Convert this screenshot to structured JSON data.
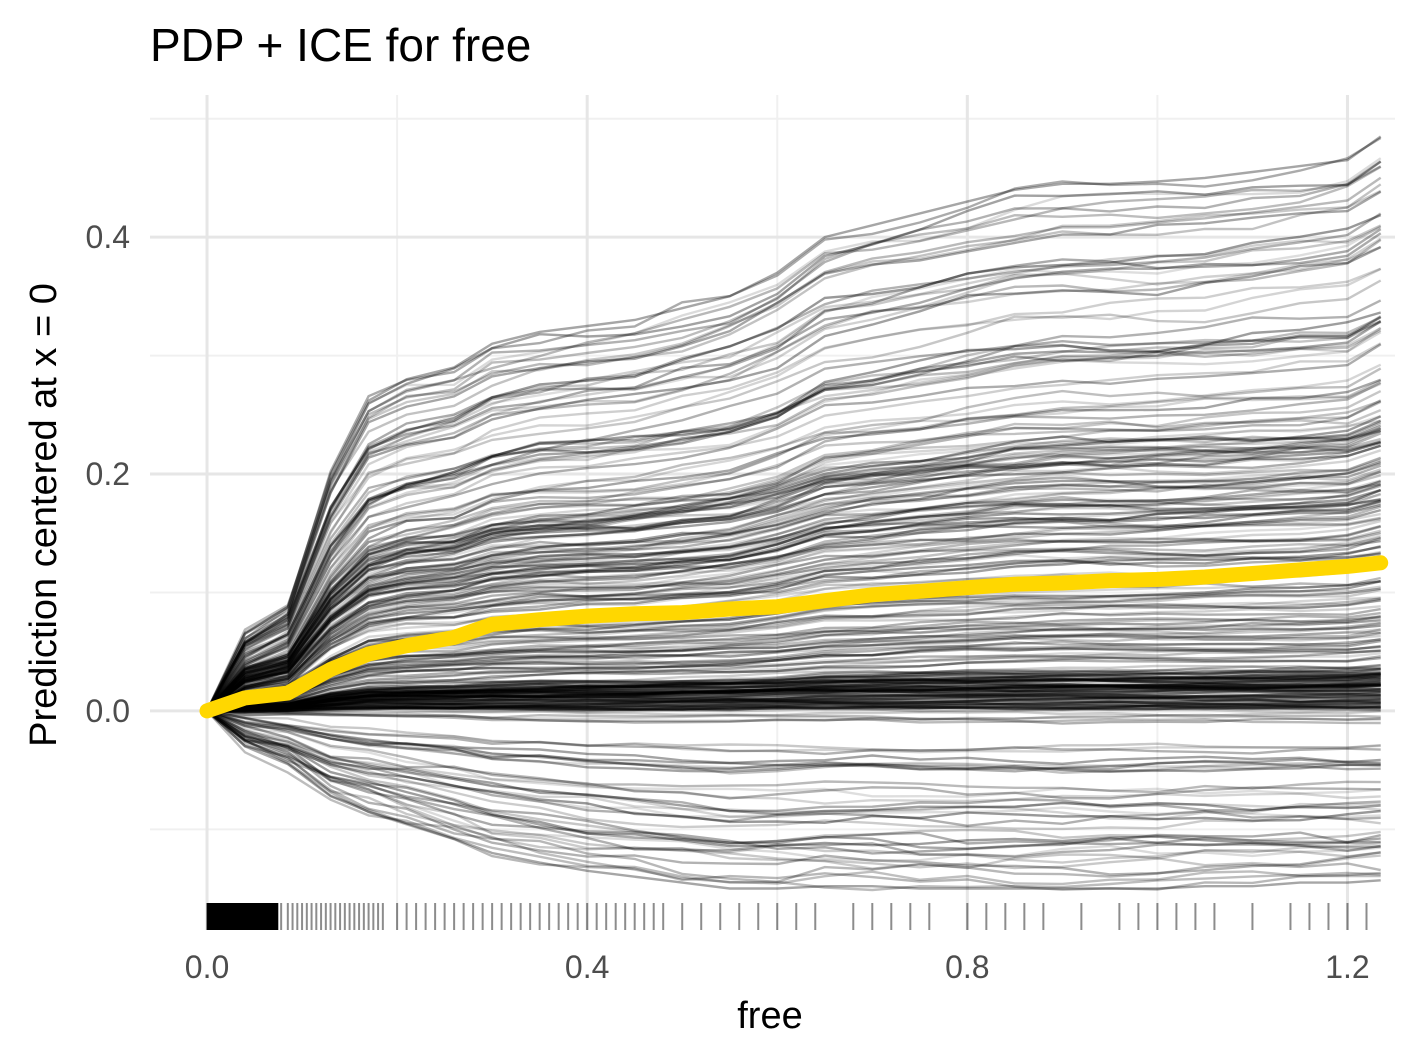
{
  "chart_data": {
    "type": "line",
    "title": "PDP + ICE for free",
    "xlabel": "free",
    "ylabel": "Prediction centered at x = 0",
    "xlim": [
      -0.06,
      1.25
    ],
    "ylim": [
      -0.185,
      0.52
    ],
    "x_ticks": [
      0.0,
      0.4,
      0.8,
      1.2
    ],
    "x_tick_labels": [
      "0.0",
      "0.4",
      "0.8",
      "1.2"
    ],
    "y_ticks": [
      0.0,
      0.2,
      0.4
    ],
    "y_tick_labels": [
      "0.0",
      "0.2",
      "0.4"
    ],
    "grid": true,
    "legend": "none",
    "pdp_color": "#FFD700",
    "ice_color": "#000000",
    "series": [
      {
        "kind": "pdp",
        "x": [
          0.0,
          0.04,
          0.085,
          0.13,
          0.17,
          0.21,
          0.26,
          0.3,
          0.35,
          0.4,
          0.45,
          0.5,
          0.55,
          0.6,
          0.65,
          0.7,
          0.75,
          0.8,
          0.85,
          0.9,
          0.95,
          1.0,
          1.05,
          1.1,
          1.15,
          1.2,
          1.235
        ],
        "y": [
          0.0,
          0.011,
          0.015,
          0.035,
          0.048,
          0.055,
          0.062,
          0.073,
          0.077,
          0.08,
          0.082,
          0.083,
          0.086,
          0.088,
          0.093,
          0.098,
          0.101,
          0.104,
          0.107,
          0.108,
          0.11,
          0.111,
          0.113,
          0.116,
          0.119,
          0.122,
          0.125
        ]
      }
    ],
    "ice_envelope": {
      "x": [
        0.0,
        0.04,
        0.085,
        0.13,
        0.17,
        0.21,
        0.26,
        0.3,
        0.35,
        0.4,
        0.45,
        0.5,
        0.55,
        0.6,
        0.65,
        0.7,
        0.75,
        0.8,
        0.85,
        0.9,
        0.95,
        1.0,
        1.05,
        1.1,
        1.15,
        1.2,
        1.235
      ],
      "max": [
        0.0,
        0.065,
        0.088,
        0.2,
        0.262,
        0.28,
        0.29,
        0.31,
        0.32,
        0.325,
        0.33,
        0.34,
        0.35,
        0.37,
        0.4,
        0.41,
        0.42,
        0.43,
        0.44,
        0.445,
        0.445,
        0.447,
        0.45,
        0.455,
        0.46,
        0.465,
        0.485
      ],
      "min": [
        0.0,
        -0.03,
        -0.045,
        -0.072,
        -0.085,
        -0.095,
        -0.108,
        -0.12,
        -0.128,
        -0.135,
        -0.14,
        -0.145,
        -0.15,
        -0.15,
        -0.148,
        -0.148,
        -0.15,
        -0.15,
        -0.15,
        -0.15,
        -0.15,
        -0.15,
        -0.148,
        -0.148,
        -0.145,
        -0.145,
        -0.143
      ]
    },
    "rug_x": [
      0.0,
      0.005,
      0.01,
      0.015,
      0.02,
      0.025,
      0.03,
      0.035,
      0.04,
      0.045,
      0.05,
      0.055,
      0.06,
      0.065,
      0.07,
      0.078,
      0.085,
      0.09,
      0.095,
      0.1,
      0.105,
      0.11,
      0.115,
      0.12,
      0.125,
      0.13,
      0.135,
      0.14,
      0.145,
      0.15,
      0.155,
      0.16,
      0.165,
      0.17,
      0.175,
      0.18,
      0.185,
      0.2,
      0.21,
      0.22,
      0.23,
      0.24,
      0.25,
      0.26,
      0.27,
      0.28,
      0.29,
      0.3,
      0.31,
      0.32,
      0.33,
      0.34,
      0.35,
      0.36,
      0.37,
      0.38,
      0.39,
      0.4,
      0.41,
      0.42,
      0.43,
      0.44,
      0.45,
      0.46,
      0.47,
      0.48,
      0.5,
      0.52,
      0.54,
      0.56,
      0.58,
      0.6,
      0.62,
      0.64,
      0.68,
      0.7,
      0.72,
      0.74,
      0.76,
      0.8,
      0.82,
      0.84,
      0.86,
      0.88,
      0.92,
      0.96,
      0.98,
      1.0,
      1.02,
      1.04,
      1.06,
      1.1,
      1.14,
      1.16,
      1.18,
      1.2,
      1.22
    ]
  }
}
